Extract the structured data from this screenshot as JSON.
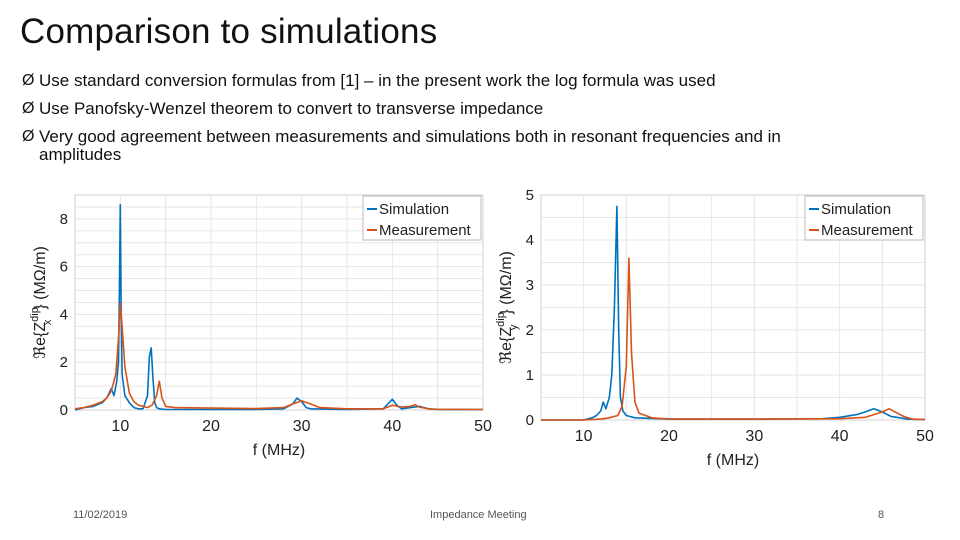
{
  "slide": {
    "title": "Comparison to simulations",
    "bullets": [
      "Use standard conversion formulas from [1] – in the present work the log formula was used",
      "Use Panofsky-Wenzel theorem to convert to transverse impedance",
      "Very good agreement between measurements and simulations both in resonant frequencies and in amplitudes"
    ],
    "bullet_marker": "Ø",
    "footer": {
      "date": "11/02/2019",
      "meeting": "Impedance Meeting",
      "page": "8"
    }
  },
  "colors": {
    "simulation": "#0072BD",
    "measurement": "#D95319"
  },
  "chart_data": [
    {
      "type": "line",
      "xlabel": "f (MHz)",
      "ylabel": "ℜe{Z_x^dip} (MΩ/m)",
      "ylabel_parts": {
        "prefix": "ℜe{Z",
        "sup": "dip",
        "sub": "x",
        "suffix": "} (MΩ/m)"
      },
      "xlim": [
        5,
        50
      ],
      "ylim": [
        0,
        9
      ],
      "xticks": [
        10,
        20,
        30,
        40,
        50
      ],
      "yticks": [
        0,
        2,
        4,
        6,
        8
      ],
      "grid": true,
      "legend_position": "top-right",
      "series": [
        {
          "name": "Simulation",
          "x": [
            5,
            6,
            7,
            8,
            8.5,
            9,
            9.3,
            9.6,
            9.8,
            9.9,
            10,
            10.1,
            10.2,
            10.5,
            11,
            11.5,
            12,
            12.5,
            13,
            13.2,
            13.4,
            13.6,
            13.8,
            14,
            14.3,
            15,
            20,
            25,
            28,
            29,
            29.5,
            30,
            30.5,
            31,
            35,
            39,
            39.5,
            40,
            40.5,
            41,
            42,
            43,
            44,
            45,
            50
          ],
          "y": [
            0,
            0.1,
            0.15,
            0.3,
            0.5,
            0.9,
            0.6,
            1.2,
            2.0,
            5.0,
            8.6,
            4.0,
            1.5,
            0.6,
            0.3,
            0.1,
            0.05,
            0.05,
            0.6,
            2.2,
            2.6,
            1.3,
            0.3,
            0.1,
            0.05,
            0.02,
            0.02,
            0.02,
            0.05,
            0.25,
            0.5,
            0.35,
            0.1,
            0.05,
            0.02,
            0.05,
            0.25,
            0.45,
            0.2,
            0.05,
            0.1,
            0.15,
            0.05,
            0.02,
            0.02
          ]
        },
        {
          "name": "Measurement",
          "x": [
            5,
            6,
            7,
            8,
            8.5,
            9,
            9.5,
            9.8,
            10,
            10.2,
            10.5,
            11,
            11.5,
            12,
            13,
            13.5,
            14,
            14.3,
            14.6,
            15,
            16,
            20,
            25,
            28,
            29,
            30,
            31,
            32,
            35,
            39,
            40,
            41,
            42,
            42.5,
            43,
            44,
            45,
            50
          ],
          "y": [
            0.05,
            0.1,
            0.2,
            0.35,
            0.5,
            0.8,
            1.5,
            3.0,
            4.5,
            3.5,
            1.8,
            0.7,
            0.35,
            0.2,
            0.1,
            0.2,
            0.6,
            1.2,
            0.5,
            0.15,
            0.1,
            0.08,
            0.06,
            0.1,
            0.25,
            0.38,
            0.25,
            0.1,
            0.05,
            0.05,
            0.2,
            0.12,
            0.15,
            0.22,
            0.12,
            0.05,
            0.03,
            0.02
          ]
        }
      ]
    },
    {
      "type": "line",
      "xlabel": "f (MHz)",
      "ylabel": "ℜe{Z_y^dip} (MΩ/m)",
      "ylabel_parts": {
        "prefix": "ℜe{Z",
        "sup": "dip",
        "sub": "y",
        "suffix": "} (MΩ/m)"
      },
      "xlim": [
        5,
        50
      ],
      "ylim": [
        0,
        5
      ],
      "xticks": [
        10,
        20,
        30,
        40,
        50
      ],
      "yticks": [
        0,
        1,
        2,
        3,
        4,
        5
      ],
      "grid": true,
      "legend_position": "top-right",
      "series": [
        {
          "name": "Simulation",
          "x": [
            5,
            10,
            11,
            11.5,
            12,
            12.3,
            12.6,
            13,
            13.3,
            13.6,
            13.9,
            14.1,
            14.3,
            14.6,
            15,
            16,
            20,
            30,
            38,
            40,
            42,
            43,
            44,
            45,
            46,
            48,
            50
          ],
          "y": [
            0,
            0,
            0.05,
            0.1,
            0.2,
            0.4,
            0.25,
            0.5,
            1.0,
            2.5,
            4.75,
            2.0,
            0.5,
            0.2,
            0.1,
            0.05,
            0.02,
            0.02,
            0.03,
            0.06,
            0.12,
            0.18,
            0.25,
            0.18,
            0.08,
            0.02,
            0.01
          ]
        },
        {
          "name": "Measurement",
          "x": [
            5,
            10,
            12,
            13,
            14,
            14.5,
            15,
            15.3,
            15.6,
            16,
            16.5,
            18,
            20,
            30,
            40,
            43,
            44,
            45,
            45.8,
            46.5,
            47.5,
            48.5,
            50
          ],
          "y": [
            0,
            0,
            0.02,
            0.05,
            0.1,
            0.3,
            1.2,
            3.6,
            1.5,
            0.4,
            0.15,
            0.05,
            0.02,
            0.02,
            0.03,
            0.06,
            0.12,
            0.18,
            0.25,
            0.18,
            0.08,
            0.02,
            0.01
          ]
        }
      ]
    }
  ]
}
